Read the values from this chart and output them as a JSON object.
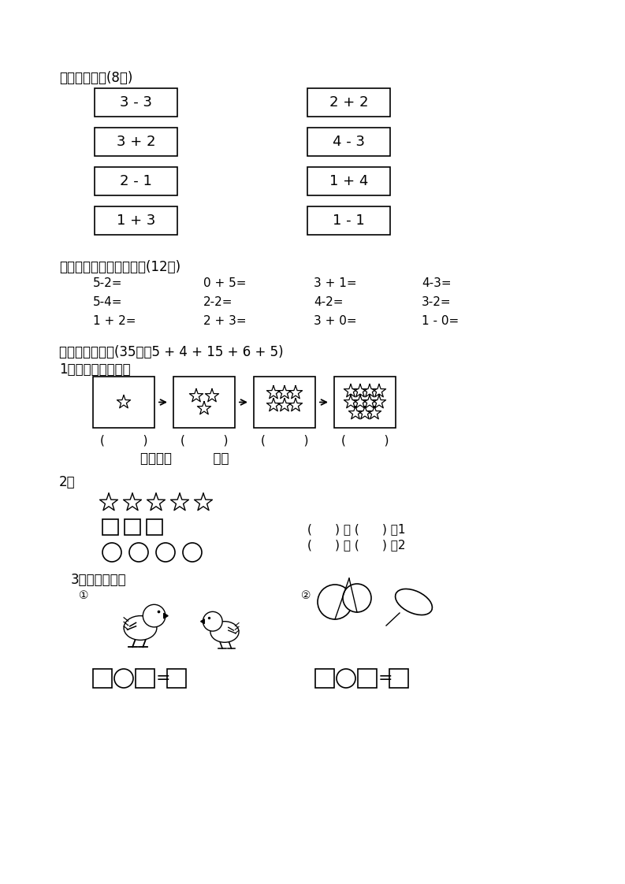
{
  "bg_color": "#ffffff",
  "section2_title": "二、找朋友。(8分)",
  "section2_left_boxes": [
    "3 - 3",
    "3 + 2",
    "2 - 1",
    "1 + 3"
  ],
  "section2_right_boxes": [
    "2 + 2",
    "4 - 3",
    "1 + 4",
    "1 - 1"
  ],
  "section3_title": "三、看谁算得又对又快。(12分)",
  "section3_rows": [
    [
      "5-2=",
      "0 + 5=",
      "3 + 1=",
      "4-3="
    ],
    [
      "5-4=",
      "2-2=",
      "4-2=",
      "3-2="
    ],
    [
      "1 + 2=",
      "2 + 3=",
      "3 + 0=",
      "1 - 0="
    ]
  ],
  "section4_title": "四、综合应用。(35分：5 + 4 + 15 + 6 + 5)",
  "sub1_title": "1、想一想，填一填",
  "sub2_title": "2、",
  "sub2_compare1": "(      ) 比 (      ) 少1",
  "sub2_compare2": "(      ) 比 (      ) 多2",
  "sub3_title": "3、看图写算式"
}
